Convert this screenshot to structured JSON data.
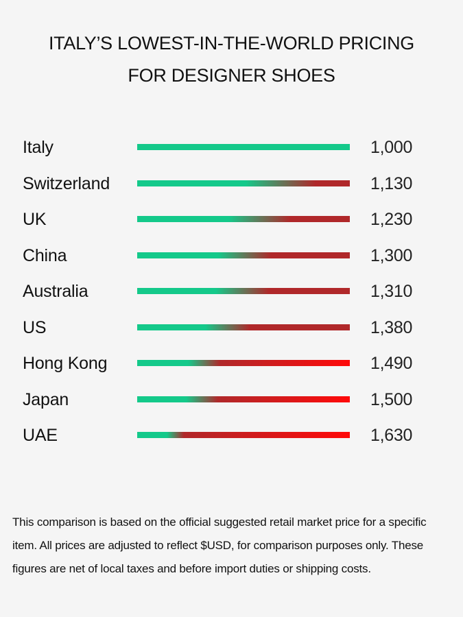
{
  "title": {
    "line1": "ITALY’S LOWEST-IN-THE-WORLD PRICING",
    "line2": "FOR DESIGNER SHOES"
  },
  "footnote": "This comparison is based on the official suggested retail market price for a specific item. All prices are adjusted to reflect $USD, for comparison purposes only. These figures are net of local taxes and before import duties or shipping costs.",
  "colors": {
    "green": "#14c98a",
    "dark_red": "#b0282a",
    "bright_red": "#ff0a0a"
  },
  "chart_data": {
    "type": "bar",
    "orientation": "horizontal",
    "categories": [
      "Italy",
      "Switzerland",
      "UK",
      "China",
      "Australia",
      "US",
      "Hong Kong",
      "Japan",
      "UAE"
    ],
    "values": [
      1000,
      1130,
      1230,
      1300,
      1310,
      1380,
      1490,
      1500,
      1630
    ],
    "value_labels": [
      "1,000",
      "1,130",
      "1,230",
      "1,300",
      "1,310",
      "1,380",
      "1,490",
      "1,500",
      "1,630"
    ],
    "grid": false,
    "legend": "none"
  }
}
